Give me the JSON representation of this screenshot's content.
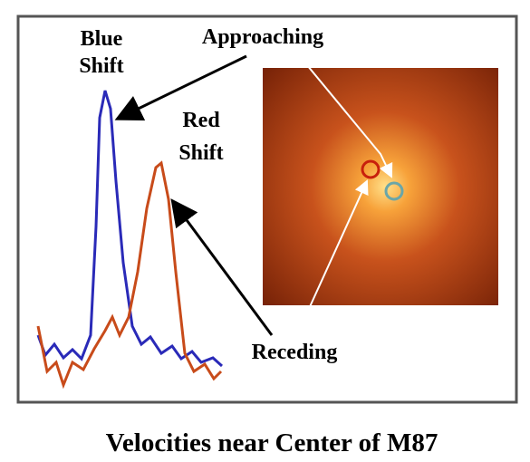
{
  "labels": {
    "blue_shift": [
      "Blue",
      "Shift"
    ],
    "red_shift": [
      "Red",
      "Shift"
    ],
    "approaching": "Approaching",
    "receding": "Receding"
  },
  "caption": "Velocities near Center of M87"
}
